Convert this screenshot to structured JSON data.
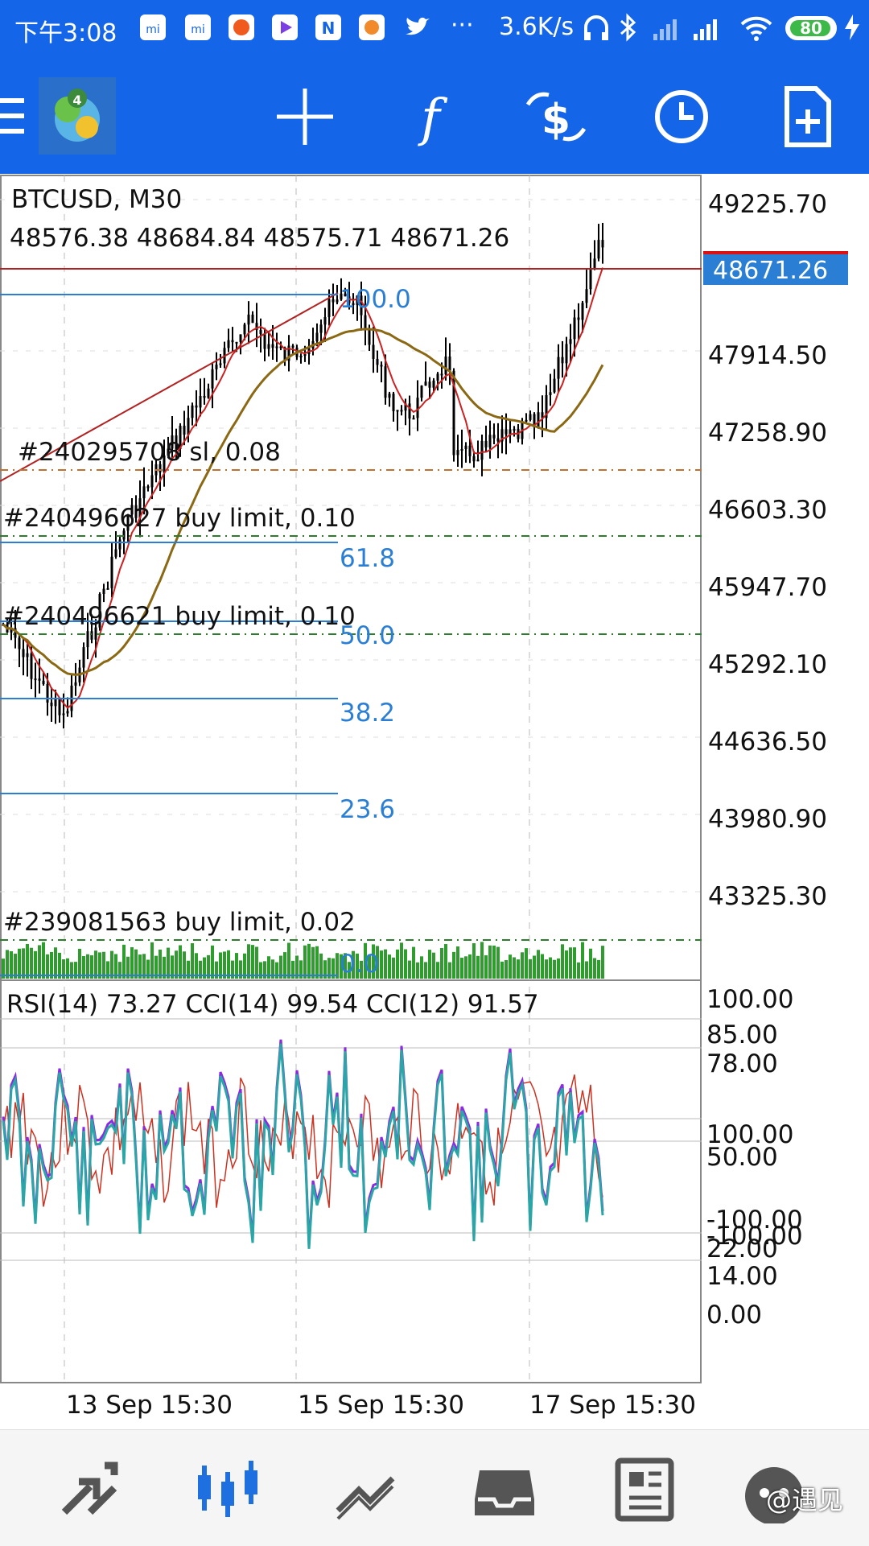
{
  "status_bar": {
    "time": "下午3:08",
    "speed": "3.6K/s",
    "battery": "80",
    "notification_icons": [
      "mi-icon",
      "mi-icon",
      "fire-app-icon",
      "play-app-icon",
      "n-app-icon",
      "bird-app-icon",
      "twitter-icon"
    ],
    "more": "···"
  },
  "toolbar": {
    "items": [
      "menu-icon",
      "app-logo",
      "crosshair-icon",
      "function-icon",
      "trade-icon",
      "clock-icon",
      "new-order-icon"
    ]
  },
  "chart": {
    "symbol": "BTCUSD, M30",
    "ohlc": "48576.38 48684.84 48575.71 48671.26",
    "current_price": "48671.26",
    "price_axis": [
      "49225.70",
      "47914.50",
      "47258.90",
      "46603.30",
      "45947.70",
      "45292.10",
      "44636.50",
      "43980.90",
      "43325.30"
    ],
    "fib_levels": [
      "100.0",
      "61.8",
      "50.0",
      "38.2",
      "23.6",
      "0.0"
    ],
    "orders": [
      "#240295708 sl, 0.08",
      "#240496627 buy limit, 0.10",
      "#240496621 buy limit, 0.10",
      "#239081563 buy limit, 0.02"
    ],
    "indicator_header": "RSI(14) 73.27 CCI(14) 99.54 CCI(12) 91.57",
    "indicator_axis": [
      "100.00",
      "85.00",
      "78.00",
      "100.00",
      "50.00",
      "-100.00",
      "-100.00",
      "22.00",
      "14.00",
      "0.00"
    ],
    "time_axis": [
      "13 Sep 15:30",
      "15 Sep 15:30",
      "17 Sep 15:30"
    ],
    "colors": {
      "accent": "#1565e8",
      "candle": "#000000",
      "ma_fast": "#cc2222",
      "ma_slow": "#8b6914",
      "fib": "#2a7fd4",
      "volume": "#2e9d2e",
      "rsi": "#2aa6a6",
      "cci": "#8a2be2",
      "price_line": "#b22222"
    }
  },
  "bottom_nav": {
    "items": [
      "trade-arrows-icon",
      "chart-candles-icon",
      "trend-icon",
      "inbox-icon",
      "news-icon",
      "community-icon"
    ],
    "watermark": "@遇见"
  }
}
